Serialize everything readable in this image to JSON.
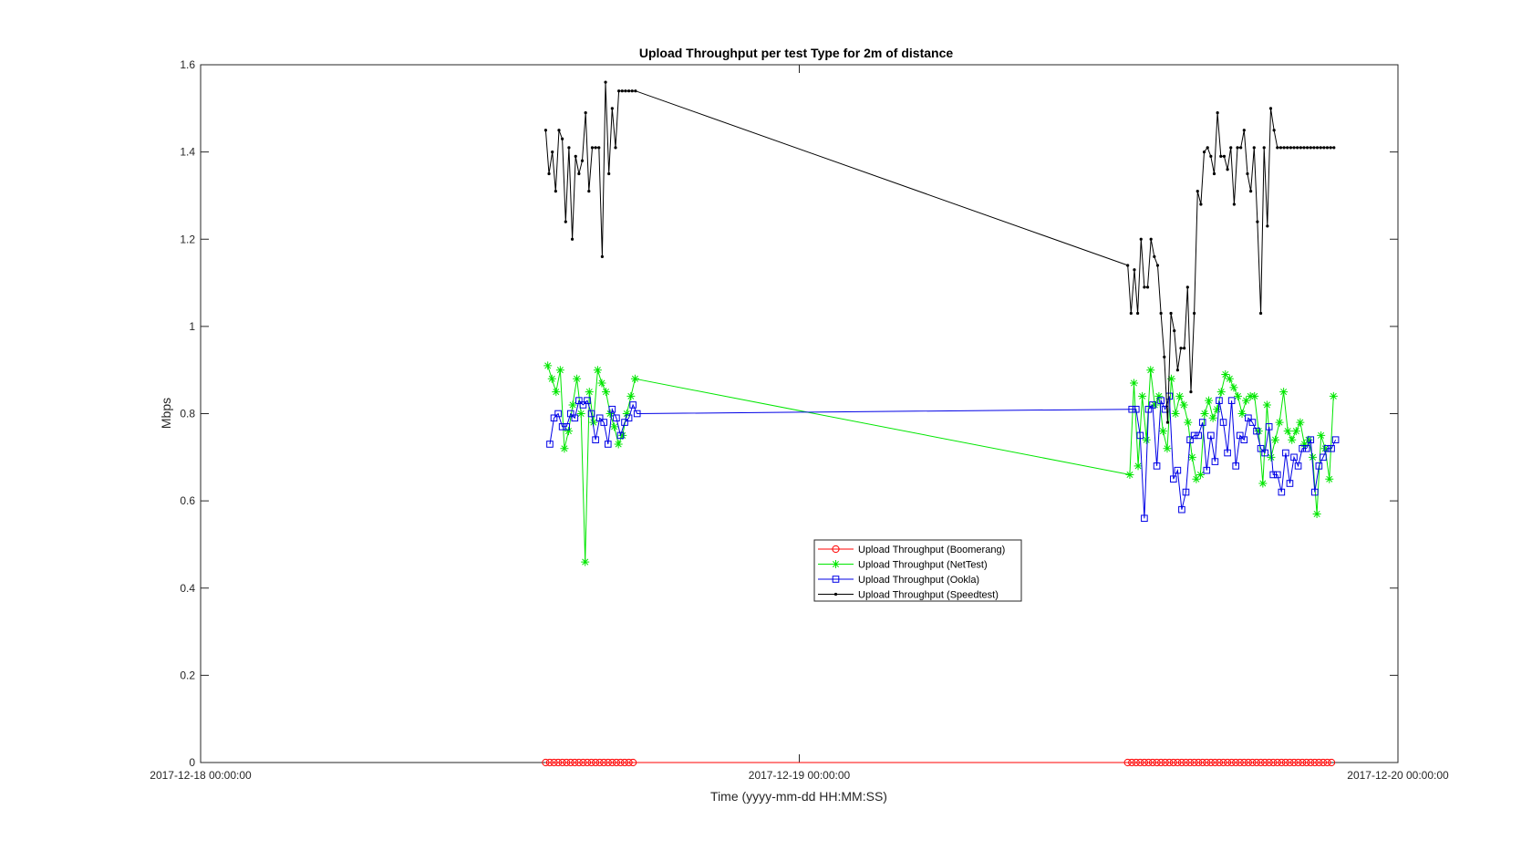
{
  "chart_data": {
    "type": "line",
    "title": "Upload Throughput per test Type for 2m of distance",
    "xlabel": "Time (yyyy-mm-dd HH:MM:SS)",
    "ylabel": "Mbps",
    "xlim": [
      "2017-12-18 00:00:00",
      "2017-12-20 00:00:00"
    ],
    "ylim": [
      0,
      1.6
    ],
    "xticks": [
      "2017-12-18 00:00:00",
      "2017-12-19 00:00:00",
      "2017-12-20 00:00:00"
    ],
    "yticks": [
      0,
      0.2,
      0.4,
      0.6,
      0.8,
      1,
      1.2,
      1.4,
      1.6
    ],
    "ytick_labels": [
      "0",
      "0.2",
      "0.4",
      "0.6",
      "0.8",
      "1",
      "1.2",
      "1.4",
      "1.6"
    ],
    "grid": false,
    "legend_position": "center",
    "series": [
      {
        "name": "Upload Throughput (Boomerang)",
        "color": "#ff0000",
        "marker": "circle",
        "x": [
          "2017-12-18 13:50:00",
          "2017-12-18 14:00:00",
          "2017-12-18 14:10:00",
          "2017-12-18 14:20:00",
          "2017-12-18 14:30:00",
          "2017-12-18 14:40:00",
          "2017-12-18 14:50:00",
          "2017-12-18 15:00:00",
          "2017-12-18 15:10:00",
          "2017-12-18 15:20:00",
          "2017-12-18 15:30:00",
          "2017-12-18 15:40:00",
          "2017-12-18 15:50:00",
          "2017-12-18 16:00:00",
          "2017-12-18 16:10:00",
          "2017-12-18 16:20:00",
          "2017-12-18 16:30:00",
          "2017-12-18 16:40:00",
          "2017-12-18 16:50:00",
          "2017-12-18 17:00:00",
          "2017-12-18 17:10:00",
          "2017-12-18 17:20:00",
          "2017-12-19 13:10:00",
          "2017-12-19 13:20:00",
          "2017-12-19 13:30:00",
          "2017-12-19 13:40:00",
          "2017-12-19 13:50:00",
          "2017-12-19 14:00:00",
          "2017-12-19 14:10:00",
          "2017-12-19 14:20:00",
          "2017-12-19 14:30:00",
          "2017-12-19 14:40:00",
          "2017-12-19 14:50:00",
          "2017-12-19 15:00:00",
          "2017-12-19 15:10:00",
          "2017-12-19 15:20:00",
          "2017-12-19 15:30:00",
          "2017-12-19 15:40:00",
          "2017-12-19 15:50:00",
          "2017-12-19 16:00:00",
          "2017-12-19 16:10:00",
          "2017-12-19 16:20:00",
          "2017-12-19 16:30:00",
          "2017-12-19 16:40:00",
          "2017-12-19 16:50:00",
          "2017-12-19 17:00:00",
          "2017-12-19 17:10:00",
          "2017-12-19 17:20:00",
          "2017-12-19 17:30:00",
          "2017-12-19 17:40:00",
          "2017-12-19 17:50:00",
          "2017-12-19 18:00:00",
          "2017-12-19 18:10:00",
          "2017-12-19 18:20:00",
          "2017-12-19 18:30:00",
          "2017-12-19 18:40:00",
          "2017-12-19 18:50:00",
          "2017-12-19 19:00:00",
          "2017-12-19 19:10:00",
          "2017-12-19 19:20:00",
          "2017-12-19 19:30:00",
          "2017-12-19 19:40:00",
          "2017-12-19 19:50:00",
          "2017-12-19 20:00:00",
          "2017-12-19 20:10:00",
          "2017-12-19 20:20:00",
          "2017-12-19 20:30:00",
          "2017-12-19 20:40:00",
          "2017-12-19 20:50:00",
          "2017-12-19 21:00:00",
          "2017-12-19 21:10:00",
          "2017-12-19 21:20:00"
        ],
        "y": [
          0,
          0,
          0,
          0,
          0,
          0,
          0,
          0,
          0,
          0,
          0,
          0,
          0,
          0,
          0,
          0,
          0,
          0,
          0,
          0,
          0,
          0,
          0,
          0,
          0,
          0,
          0,
          0,
          0,
          0,
          0,
          0,
          0,
          0,
          0,
          0,
          0,
          0,
          0,
          0,
          0,
          0,
          0,
          0,
          0,
          0,
          0,
          0,
          0,
          0,
          0,
          0,
          0,
          0,
          0,
          0,
          0,
          0,
          0,
          0,
          0,
          0,
          0,
          0,
          0,
          0,
          0,
          0,
          0,
          0,
          0,
          0
        ]
      },
      {
        "name": "Upload Throughput (NetTest)",
        "color": "#00e600",
        "marker": "asterisk",
        "x": [
          "2017-12-18 13:55:00",
          "2017-12-18 14:05:00",
          "2017-12-18 14:15:00",
          "2017-12-18 14:25:00",
          "2017-12-18 14:35:00",
          "2017-12-18 14:45:00",
          "2017-12-18 14:55:00",
          "2017-12-18 15:05:00",
          "2017-12-18 15:15:00",
          "2017-12-18 15:25:00",
          "2017-12-18 15:35:00",
          "2017-12-18 15:45:00",
          "2017-12-18 15:55:00",
          "2017-12-18 16:05:00",
          "2017-12-18 16:15:00",
          "2017-12-18 16:25:00",
          "2017-12-18 16:35:00",
          "2017-12-18 16:45:00",
          "2017-12-18 16:55:00",
          "2017-12-18 17:05:00",
          "2017-12-18 17:15:00",
          "2017-12-18 17:25:00",
          "2017-12-19 13:15:00",
          "2017-12-19 13:25:00",
          "2017-12-19 13:35:00",
          "2017-12-19 13:45:00",
          "2017-12-19 13:55:00",
          "2017-12-19 14:05:00",
          "2017-12-19 14:15:00",
          "2017-12-19 14:25:00",
          "2017-12-19 14:35:00",
          "2017-12-19 14:45:00",
          "2017-12-19 14:55:00",
          "2017-12-19 15:05:00",
          "2017-12-19 15:15:00",
          "2017-12-19 15:25:00",
          "2017-12-19 15:35:00",
          "2017-12-19 15:45:00",
          "2017-12-19 15:55:00",
          "2017-12-19 16:05:00",
          "2017-12-19 16:15:00",
          "2017-12-19 16:25:00",
          "2017-12-19 16:35:00",
          "2017-12-19 16:45:00",
          "2017-12-19 16:55:00",
          "2017-12-19 17:05:00",
          "2017-12-19 17:15:00",
          "2017-12-19 17:25:00",
          "2017-12-19 17:35:00",
          "2017-12-19 17:45:00",
          "2017-12-19 17:55:00",
          "2017-12-19 18:05:00",
          "2017-12-19 18:15:00",
          "2017-12-19 18:25:00",
          "2017-12-19 18:35:00",
          "2017-12-19 18:45:00",
          "2017-12-19 18:55:00",
          "2017-12-19 19:05:00",
          "2017-12-19 19:15:00",
          "2017-12-19 19:25:00",
          "2017-12-19 19:35:00",
          "2017-12-19 19:45:00",
          "2017-12-19 19:55:00",
          "2017-12-19 20:05:00",
          "2017-12-19 20:15:00",
          "2017-12-19 20:25:00",
          "2017-12-19 20:35:00",
          "2017-12-19 20:45:00",
          "2017-12-19 20:55:00",
          "2017-12-19 21:05:00",
          "2017-12-19 21:15:00",
          "2017-12-19 21:25:00"
        ],
        "y": [
          0.91,
          0.88,
          0.85,
          0.9,
          0.72,
          0.76,
          0.82,
          0.88,
          0.8,
          0.46,
          0.85,
          0.78,
          0.9,
          0.87,
          0.85,
          0.8,
          0.77,
          0.73,
          0.75,
          0.8,
          0.84,
          0.88,
          0.66,
          0.87,
          0.68,
          0.84,
          0.74,
          0.9,
          0.82,
          0.84,
          0.76,
          0.72,
          0.88,
          0.8,
          0.84,
          0.82,
          0.78,
          0.7,
          0.65,
          0.66,
          0.8,
          0.83,
          0.79,
          0.81,
          0.85,
          0.89,
          0.88,
          0.86,
          0.84,
          0.8,
          0.83,
          0.84,
          0.84,
          0.76,
          0.64,
          0.82,
          0.7,
          0.74,
          0.78,
          0.85,
          0.76,
          0.74,
          0.76,
          0.78,
          0.73,
          0.74,
          0.7,
          0.57,
          0.75,
          0.72,
          0.65,
          0.84
        ]
      },
      {
        "name": "Upload Throughput (Ookla)",
        "color": "#0000e6",
        "marker": "square",
        "x": [
          "2017-12-18 14:00:00",
          "2017-12-18 14:10:00",
          "2017-12-18 14:20:00",
          "2017-12-18 14:30:00",
          "2017-12-18 14:40:00",
          "2017-12-18 14:50:00",
          "2017-12-18 15:00:00",
          "2017-12-18 15:10:00",
          "2017-12-18 15:20:00",
          "2017-12-18 15:30:00",
          "2017-12-18 15:40:00",
          "2017-12-18 15:50:00",
          "2017-12-18 16:00:00",
          "2017-12-18 16:10:00",
          "2017-12-18 16:20:00",
          "2017-12-18 16:30:00",
          "2017-12-18 16:40:00",
          "2017-12-18 16:50:00",
          "2017-12-18 17:00:00",
          "2017-12-18 17:10:00",
          "2017-12-18 17:20:00",
          "2017-12-18 17:30:00",
          "2017-12-19 13:20:00",
          "2017-12-19 13:30:00",
          "2017-12-19 13:40:00",
          "2017-12-19 13:50:00",
          "2017-12-19 14:00:00",
          "2017-12-19 14:10:00",
          "2017-12-19 14:20:00",
          "2017-12-19 14:30:00",
          "2017-12-19 14:40:00",
          "2017-12-19 14:50:00",
          "2017-12-19 15:00:00",
          "2017-12-19 15:10:00",
          "2017-12-19 15:20:00",
          "2017-12-19 15:30:00",
          "2017-12-19 15:40:00",
          "2017-12-19 15:50:00",
          "2017-12-19 16:00:00",
          "2017-12-19 16:10:00",
          "2017-12-19 16:20:00",
          "2017-12-19 16:30:00",
          "2017-12-19 16:40:00",
          "2017-12-19 16:50:00",
          "2017-12-19 17:00:00",
          "2017-12-19 17:10:00",
          "2017-12-19 17:20:00",
          "2017-12-19 17:30:00",
          "2017-12-19 17:40:00",
          "2017-12-19 17:50:00",
          "2017-12-19 18:00:00",
          "2017-12-19 18:10:00",
          "2017-12-19 18:20:00",
          "2017-12-19 18:30:00",
          "2017-12-19 18:40:00",
          "2017-12-19 18:50:00",
          "2017-12-19 19:00:00",
          "2017-12-19 19:10:00",
          "2017-12-19 19:20:00",
          "2017-12-19 19:30:00",
          "2017-12-19 19:40:00",
          "2017-12-19 19:50:00",
          "2017-12-19 20:00:00",
          "2017-12-19 20:10:00",
          "2017-12-19 20:20:00",
          "2017-12-19 20:30:00",
          "2017-12-19 20:40:00",
          "2017-12-19 20:50:00",
          "2017-12-19 21:00:00",
          "2017-12-19 21:10:00",
          "2017-12-19 21:20:00",
          "2017-12-19 21:30:00"
        ],
        "y": [
          0.73,
          0.79,
          0.8,
          0.77,
          0.77,
          0.8,
          0.79,
          0.83,
          0.82,
          0.83,
          0.8,
          0.74,
          0.79,
          0.78,
          0.73,
          0.81,
          0.79,
          0.75,
          0.78,
          0.79,
          0.82,
          0.8,
          0.81,
          0.81,
          0.75,
          0.56,
          0.81,
          0.82,
          0.68,
          0.83,
          0.81,
          0.84,
          0.65,
          0.67,
          0.58,
          0.62,
          0.74,
          0.75,
          0.75,
          0.78,
          0.67,
          0.75,
          0.69,
          0.83,
          0.78,
          0.71,
          0.83,
          0.68,
          0.75,
          0.74,
          0.79,
          0.78,
          0.76,
          0.72,
          0.71,
          0.77,
          0.66,
          0.66,
          0.62,
          0.71,
          0.64,
          0.7,
          0.68,
          0.72,
          0.72,
          0.74,
          0.62,
          0.68,
          0.7,
          0.72,
          0.72,
          0.74
        ]
      },
      {
        "name": "Upload Throughput (Speedtest)",
        "color": "#000000",
        "marker": "point",
        "x": [
          "2017-12-18 13:50:00",
          "2017-12-18 13:58:00",
          "2017-12-18 14:06:00",
          "2017-12-18 14:14:00",
          "2017-12-18 14:22:00",
          "2017-12-18 14:30:00",
          "2017-12-18 14:38:00",
          "2017-12-18 14:46:00",
          "2017-12-18 14:54:00",
          "2017-12-18 15:02:00",
          "2017-12-18 15:10:00",
          "2017-12-18 15:18:00",
          "2017-12-18 15:26:00",
          "2017-12-18 15:34:00",
          "2017-12-18 15:42:00",
          "2017-12-18 15:50:00",
          "2017-12-18 15:58:00",
          "2017-12-18 16:06:00",
          "2017-12-18 16:14:00",
          "2017-12-18 16:22:00",
          "2017-12-18 16:30:00",
          "2017-12-18 16:38:00",
          "2017-12-18 16:46:00",
          "2017-12-18 16:54:00",
          "2017-12-18 17:02:00",
          "2017-12-18 17:10:00",
          "2017-12-18 17:18:00",
          "2017-12-18 17:26:00",
          "2017-12-19 13:10:00",
          "2017-12-19 13:18:00",
          "2017-12-19 13:26:00",
          "2017-12-19 13:34:00",
          "2017-12-19 13:42:00",
          "2017-12-19 13:50:00",
          "2017-12-19 13:58:00",
          "2017-12-19 14:06:00",
          "2017-12-19 14:14:00",
          "2017-12-19 14:22:00",
          "2017-12-19 14:30:00",
          "2017-12-19 14:38:00",
          "2017-12-19 14:46:00",
          "2017-12-19 14:54:00",
          "2017-12-19 15:02:00",
          "2017-12-19 15:10:00",
          "2017-12-19 15:18:00",
          "2017-12-19 15:26:00",
          "2017-12-19 15:34:00",
          "2017-12-19 15:42:00",
          "2017-12-19 15:50:00",
          "2017-12-19 15:58:00",
          "2017-12-19 16:06:00",
          "2017-12-19 16:14:00",
          "2017-12-19 16:22:00",
          "2017-12-19 16:30:00",
          "2017-12-19 16:38:00",
          "2017-12-19 16:46:00",
          "2017-12-19 16:54:00",
          "2017-12-19 17:02:00",
          "2017-12-19 17:10:00",
          "2017-12-19 17:18:00",
          "2017-12-19 17:26:00",
          "2017-12-19 17:34:00",
          "2017-12-19 17:42:00",
          "2017-12-19 17:50:00",
          "2017-12-19 17:58:00",
          "2017-12-19 18:06:00",
          "2017-12-19 18:14:00",
          "2017-12-19 18:22:00",
          "2017-12-19 18:30:00",
          "2017-12-19 18:38:00",
          "2017-12-19 18:46:00",
          "2017-12-19 18:54:00",
          "2017-12-19 19:02:00",
          "2017-12-19 19:10:00",
          "2017-12-19 19:18:00",
          "2017-12-19 19:26:00",
          "2017-12-19 19:34:00",
          "2017-12-19 19:42:00",
          "2017-12-19 19:50:00",
          "2017-12-19 19:58:00",
          "2017-12-19 20:06:00",
          "2017-12-19 20:14:00",
          "2017-12-19 20:22:00",
          "2017-12-19 20:30:00",
          "2017-12-19 20:38:00",
          "2017-12-19 20:46:00",
          "2017-12-19 20:54:00",
          "2017-12-19 21:02:00",
          "2017-12-19 21:10:00",
          "2017-12-19 21:18:00",
          "2017-12-19 21:26:00"
        ],
        "y": [
          1.45,
          1.35,
          1.4,
          1.31,
          1.45,
          1.43,
          1.24,
          1.41,
          1.2,
          1.39,
          1.35,
          1.38,
          1.49,
          1.31,
          1.41,
          1.41,
          1.41,
          1.16,
          1.56,
          1.35,
          1.5,
          1.41,
          1.54,
          1.54,
          1.54,
          1.54,
          1.54,
          1.54,
          1.14,
          1.03,
          1.13,
          1.03,
          1.2,
          1.09,
          1.09,
          1.2,
          1.16,
          1.14,
          1.03,
          0.93,
          0.78,
          1.03,
          0.99,
          0.9,
          0.95,
          0.95,
          1.09,
          0.85,
          1.03,
          1.31,
          1.28,
          1.4,
          1.41,
          1.39,
          1.35,
          1.49,
          1.39,
          1.39,
          1.36,
          1.41,
          1.28,
          1.41,
          1.41,
          1.45,
          1.35,
          1.31,
          1.41,
          1.24,
          1.03,
          1.41,
          1.23,
          1.5,
          1.45,
          1.41,
          1.41,
          1.41,
          1.41,
          1.41,
          1.41,
          1.41,
          1.41,
          1.41,
          1.41,
          1.41,
          1.41,
          1.41,
          1.41,
          1.41,
          1.41,
          1.41,
          1.41
        ]
      }
    ]
  }
}
